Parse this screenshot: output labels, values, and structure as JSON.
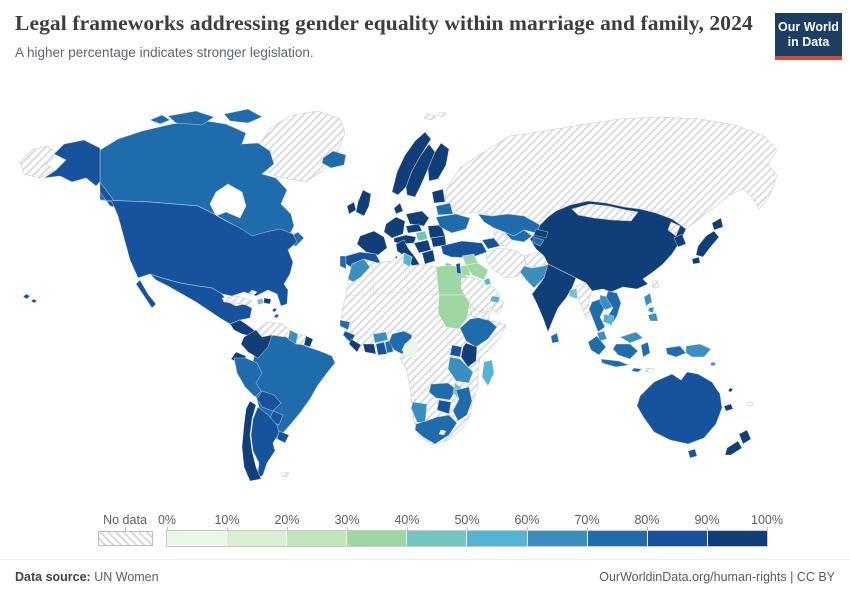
{
  "header": {
    "title": "Legal frameworks addressing gender equality within marriage and family, 2024",
    "subtitle": "A higher percentage indicates stronger legislation.",
    "logo": {
      "line1": "Our World",
      "line2": "in Data",
      "bg_color": "#1d3d63",
      "bar_color": "#dc4632"
    }
  },
  "legend": {
    "no_data_label": "No data",
    "tick_labels": [
      "0%",
      "10%",
      "20%",
      "30%",
      "40%",
      "50%",
      "60%",
      "70%",
      "80%",
      "90%",
      "100%"
    ]
  },
  "footer": {
    "source_label": "Data source:",
    "source_value": "UN Women",
    "link_text": "OurWorldinData.org/human-rights",
    "license_text": " | CC BY"
  },
  "chart_data": {
    "type": "choropleth",
    "title": "Legal frameworks addressing gender equality within marriage and family, 2024",
    "unit": "%",
    "legend_position": "bottom",
    "bin_edges_percent": [
      0,
      10,
      20,
      30,
      40,
      50,
      60,
      70,
      80,
      90,
      100
    ],
    "palette": [
      "#eaf7e7",
      "#d9efd3",
      "#c0e5bb",
      "#9ed7a4",
      "#74c5bd",
      "#55b4d5",
      "#3a8ec0",
      "#1f6cac",
      "#17539d",
      "#0f3e78"
    ],
    "no_data_style": "diagonal-hatch",
    "values_bin": {
      "russia": 0,
      "svalbard": 0,
      "greenland": 0,
      "iceland": 8,
      "canada": 8,
      "united_states": 9,
      "mexico": 9,
      "central_america": 10,
      "cuba": 0,
      "haiti": 5,
      "dominican_republic": 10,
      "bahamas": 0,
      "lesser_antilles": 9,
      "venezuela": 0,
      "colombia": 10,
      "guyana": 7,
      "suriname": 0,
      "french_guiana": 10,
      "brazil": 8,
      "ecuador": 10,
      "peru": 8,
      "bolivia": 9,
      "paraguay": 9,
      "uruguay": 9,
      "chile": 10,
      "argentina": 9,
      "falkland_islands": 0,
      "ireland": 10,
      "united_kingdom": 10,
      "portugal": 8,
      "spain": 9,
      "france": 10,
      "germany": 10,
      "denmark": 10,
      "norway": 10,
      "sweden": 10,
      "finland": 10,
      "baltics": 10,
      "belarus": 8,
      "poland": 10,
      "czechia_slovakia": 10,
      "austria_switzerland": 10,
      "hungary": 5,
      "romania": 10,
      "balkans": 10,
      "bulgaria": 10,
      "greece": 10,
      "italy": 10,
      "ukraine": 8,
      "turkey": 9,
      "cyprus": 5,
      "kazakhstan": 8,
      "uzbekistan": 8,
      "turkmenistan": 0,
      "kyrgyzstan": 10,
      "tajikistan": 8,
      "caucasus": 9,
      "syria": 4,
      "israel": 9,
      "jordan": 4,
      "iraq": 4,
      "saudi_arabia": 0,
      "yemen": 0,
      "oman": 0,
      "uae": 6,
      "kuwait": 6,
      "iran": 0,
      "afghanistan": 0,
      "pakistan": 7,
      "india": 10,
      "bangladesh": 5,
      "sri_lanka": 8,
      "myanmar": 0,
      "thailand": 8,
      "laos": 7,
      "vietnam": 8,
      "cambodia": 6,
      "malaysia": 7,
      "china": 10,
      "mongolia": 0,
      "north_korea": 0,
      "south_korea": 10,
      "japan": 10,
      "taiwan": 0,
      "philippines": 7,
      "indonesia": 8,
      "papua_new_guinea": 7,
      "timor_leste": 0,
      "australia": 9,
      "new_zealand": 10,
      "new_caledonia": 10,
      "fiji": 0,
      "solomon_islands": 7,
      "vanuatu": 10,
      "africa_nodata": 0,
      "morocco": 7,
      "tunisia": 6,
      "egypt": 4,
      "sudan": 4,
      "ethiopia": 8,
      "kenya": 10,
      "uganda": 9,
      "tanzania": 7,
      "senegal": 8,
      "guinea": 9,
      "sierra_leone_liberia": 10,
      "cote_divoire": 10,
      "ghana": 9,
      "togo_benin": 8,
      "burkina_faso": 7,
      "nigeria": 8,
      "cameroon": 1,
      "zambia": 8,
      "malawi": 5,
      "mozambique": 8,
      "zimbabwe": 9,
      "namibia": 7,
      "south_africa": 8,
      "lesotho": 0,
      "madagascar": 6
    }
  }
}
